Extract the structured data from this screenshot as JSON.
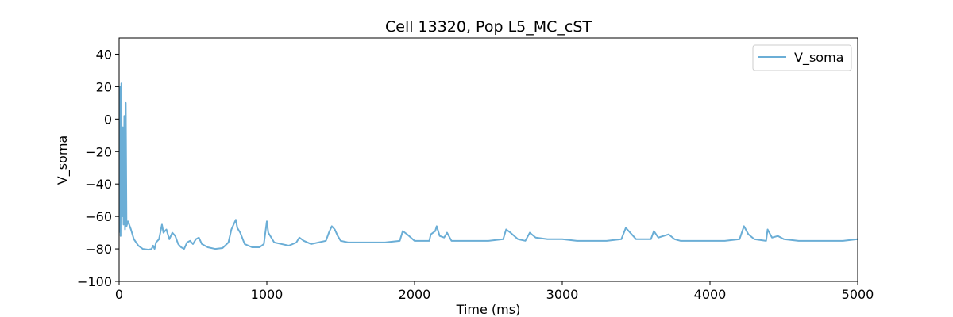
{
  "chart_data": {
    "type": "line",
    "title": "Cell 13320, Pop L5_MC_cST",
    "xlabel": "Time (ms)",
    "ylabel": "V_soma",
    "xlim": [
      0,
      5000
    ],
    "ylim": [
      -100,
      50
    ],
    "xticks": [
      0,
      1000,
      2000,
      3000,
      4000,
      5000
    ],
    "yticks": [
      {
        "value": -100,
        "label": "−100"
      },
      {
        "value": -80,
        "label": "−80"
      },
      {
        "value": -60,
        "label": "−60"
      },
      {
        "value": -40,
        "label": "−40"
      },
      {
        "value": -20,
        "label": "−20"
      },
      0,
      20,
      40
    ],
    "legend": "upper right",
    "grid": false,
    "x": [
      0,
      5,
      10,
      15,
      20,
      25,
      30,
      35,
      40,
      45,
      50,
      60,
      80,
      100,
      130,
      160,
      200,
      220,
      230,
      240,
      250,
      270,
      290,
      300,
      320,
      340,
      360,
      380,
      400,
      420,
      440,
      460,
      480,
      500,
      520,
      540,
      560,
      600,
      650,
      700,
      740,
      760,
      780,
      790,
      800,
      820,
      850,
      900,
      950,
      980,
      1000,
      1010,
      1030,
      1050,
      1100,
      1150,
      1200,
      1220,
      1250,
      1300,
      1350,
      1400,
      1420,
      1440,
      1460,
      1480,
      1500,
      1550,
      1600,
      1700,
      1800,
      1900,
      1920,
      1950,
      2000,
      2050,
      2100,
      2110,
      2140,
      2150,
      2170,
      2200,
      2220,
      2250,
      2300,
      2400,
      2500,
      2600,
      2620,
      2650,
      2700,
      2750,
      2780,
      2820,
      2900,
      3000,
      3100,
      3200,
      3300,
      3400,
      3430,
      3470,
      3500,
      3600,
      3620,
      3650,
      3720,
      3760,
      3800,
      3900,
      4000,
      4100,
      4200,
      4230,
      4260,
      4300,
      4380,
      4390,
      4420,
      4460,
      4500,
      4600,
      4700,
      4800,
      4900,
      5000
    ],
    "series": [
      {
        "name": "V_soma",
        "color": "#6baed6",
        "values": [
          -70,
          20,
          -72,
          22,
          -60,
          -5,
          -65,
          2,
          -68,
          10,
          -66,
          -63,
          -68,
          -74,
          -78,
          -80,
          -80.5,
          -80,
          -78,
          -80,
          -76,
          -74,
          -65,
          -70,
          -68,
          -74,
          -70,
          -72,
          -77,
          -79,
          -80,
          -76,
          -75,
          -77,
          -74,
          -73,
          -77,
          -79,
          -80,
          -79.5,
          -76,
          -68,
          -64,
          -62,
          -67,
          -70,
          -77,
          -79,
          -79,
          -77,
          -63,
          -70,
          -73,
          -76,
          -77,
          -78,
          -76,
          -73,
          -75,
          -77,
          -76,
          -75,
          -70,
          -66,
          -68,
          -72,
          -75,
          -76,
          -76,
          -76,
          -76,
          -75,
          -69,
          -71,
          -75,
          -75,
          -75,
          -71,
          -69,
          -66,
          -72,
          -73,
          -70,
          -75,
          -75,
          -75,
          -75,
          -74,
          -68,
          -70,
          -74,
          -75,
          -70,
          -73,
          -74,
          -74,
          -75,
          -75,
          -75,
          -74,
          -67,
          -71,
          -74,
          -74,
          -69,
          -73,
          -71,
          -74,
          -75,
          -75,
          -75,
          -75,
          -74,
          -66,
          -71,
          -74,
          -75,
          -68,
          -73,
          -72,
          -74,
          -75,
          -75,
          -75,
          -75,
          -74
        ]
      }
    ]
  }
}
